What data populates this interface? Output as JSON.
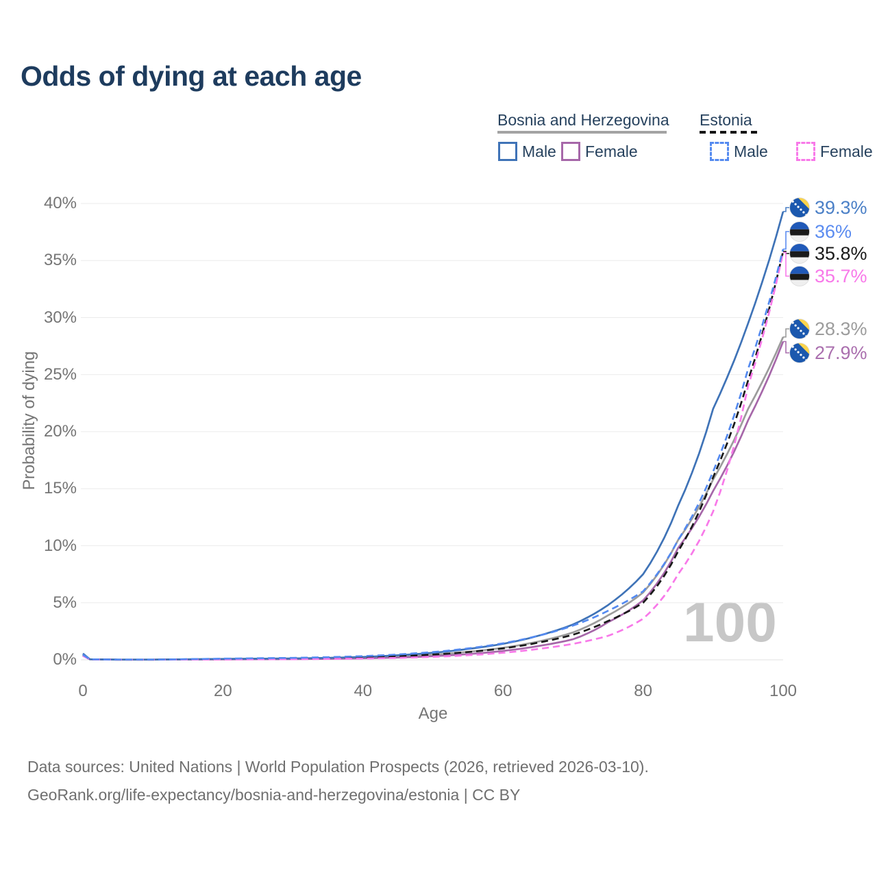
{
  "title": "Odds of dying at each age",
  "legend": {
    "groups": [
      {
        "label": "Bosnia and Herzegovina",
        "line_style": "solid",
        "line_color": "#a3a3a3",
        "items": [
          {
            "label": "Male",
            "color": "#3f73b7",
            "style": "solid"
          },
          {
            "label": "Female",
            "color": "#a667a9",
            "style": "solid"
          }
        ]
      },
      {
        "label": "Estonia",
        "line_style": "dashed",
        "line_color": "#141414",
        "items": [
          {
            "label": "Male",
            "color": "#548af0",
            "style": "dashed"
          },
          {
            "label": "Female",
            "color": "#f879e9",
            "style": "dashed"
          }
        ]
      }
    ]
  },
  "watermark": "100",
  "chart_data": {
    "type": "line",
    "title": "Odds of dying at each age",
    "xlabel": "Age",
    "ylabel": "Probability of dying",
    "xlim": [
      0,
      100
    ],
    "ylim": [
      0,
      40
    ],
    "x_tick_values": [
      0,
      20,
      40,
      60,
      80,
      100
    ],
    "x_tick_labels": [
      "0",
      "20",
      "40",
      "60",
      "80",
      "100"
    ],
    "y_tick_values": [
      0,
      5,
      10,
      15,
      20,
      25,
      30,
      35,
      40
    ],
    "y_tick_labels": [
      "0%",
      "5%",
      "10%",
      "15%",
      "20%",
      "25%",
      "30%",
      "35%",
      "40%"
    ],
    "grid": "horizontal",
    "legend_position": "top-right",
    "x": [
      0,
      1,
      5,
      10,
      15,
      20,
      25,
      30,
      35,
      40,
      45,
      50,
      55,
      60,
      65,
      70,
      75,
      80,
      85,
      90,
      95,
      100
    ],
    "series": [
      {
        "name": "Bosnia and Herzegovina — Male",
        "country": "Bosnia and Herzegovina",
        "sex": "Male",
        "style": "solid",
        "color": "#3f73b7",
        "end_value": 39.3,
        "values": [
          0.55,
          0.05,
          0.02,
          0.02,
          0.05,
          0.08,
          0.1,
          0.12,
          0.17,
          0.25,
          0.4,
          0.62,
          0.95,
          1.4,
          2.1,
          3.1,
          4.8,
          7.5,
          13.5,
          22.0,
          29.5,
          39.3
        ]
      },
      {
        "name": "Estonia — Male",
        "country": "Estonia",
        "sex": "Male",
        "style": "dashed",
        "color": "#548af0",
        "end_value": 36,
        "values": [
          0.45,
          0.04,
          0.02,
          0.02,
          0.06,
          0.1,
          0.14,
          0.17,
          0.23,
          0.32,
          0.47,
          0.68,
          1.0,
          1.45,
          2.1,
          3.0,
          4.3,
          6.0,
          10.5,
          16.5,
          25.5,
          36.0
        ]
      },
      {
        "name": "Estonia — Both sexes",
        "country": "Estonia",
        "sex": "Both sexes",
        "style": "dashed",
        "color": "#1a1a1a",
        "end_value": 35.8,
        "values": [
          0.4,
          0.035,
          0.015,
          0.015,
          0.04,
          0.06,
          0.09,
          0.11,
          0.15,
          0.21,
          0.31,
          0.46,
          0.68,
          1.0,
          1.5,
          2.2,
          3.4,
          5.0,
          9.5,
          16.0,
          24.5,
          35.8
        ]
      },
      {
        "name": "Estonia — Female",
        "country": "Estonia",
        "sex": "Female",
        "style": "dashed",
        "color": "#f879e9",
        "end_value": 35.7,
        "values": [
          0.35,
          0.03,
          0.01,
          0.01,
          0.02,
          0.03,
          0.04,
          0.055,
          0.08,
          0.11,
          0.17,
          0.26,
          0.4,
          0.62,
          0.95,
          1.4,
          2.1,
          3.6,
          7.5,
          13.0,
          24.0,
          35.7
        ]
      },
      {
        "name": "Bosnia and Herzegovina — Both sexes",
        "country": "Bosnia and Herzegovina",
        "sex": "Both sexes",
        "style": "solid",
        "color": "#9c9c9c",
        "end_value": 28.3,
        "values": [
          0.5,
          0.045,
          0.02,
          0.02,
          0.04,
          0.055,
          0.07,
          0.09,
          0.12,
          0.18,
          0.29,
          0.45,
          0.7,
          1.05,
          1.6,
          2.4,
          3.9,
          5.9,
          10.5,
          15.8,
          22.0,
          28.3
        ]
      },
      {
        "name": "Bosnia and Herzegovina — Female",
        "country": "Bosnia and Herzegovina",
        "sex": "Female",
        "style": "solid",
        "color": "#a667a9",
        "end_value": 27.9,
        "values": [
          0.45,
          0.04,
          0.015,
          0.015,
          0.025,
          0.035,
          0.05,
          0.06,
          0.09,
          0.13,
          0.2,
          0.32,
          0.5,
          0.78,
          1.2,
          1.8,
          3.3,
          5.2,
          9.8,
          14.8,
          21.0,
          27.9
        ]
      }
    ]
  },
  "end_labels": [
    {
      "value": "39.3%",
      "color": "#4b80c7",
      "flag": "bosnia-and-herzegovina"
    },
    {
      "value": "36%",
      "color": "#5b8cf0",
      "flag": "estonia"
    },
    {
      "value": "35.8%",
      "color": "#1a1a1a",
      "flag": "estonia"
    },
    {
      "value": "35.7%",
      "color": "#f879e9",
      "flag": "estonia"
    },
    {
      "value": "28.3%",
      "color": "#9c9c9c",
      "flag": "bosnia-and-herzegovina"
    },
    {
      "value": "27.9%",
      "color": "#aa6fae",
      "flag": "bosnia-and-herzegovina"
    }
  ],
  "footer": {
    "line1": "Data sources: United Nations | World Population Prospects (2026, retrieved 2026-03-10).",
    "line2": "GeoRank.org/life-expectancy/bosnia-and-herzegovina/estonia | CC BY"
  }
}
